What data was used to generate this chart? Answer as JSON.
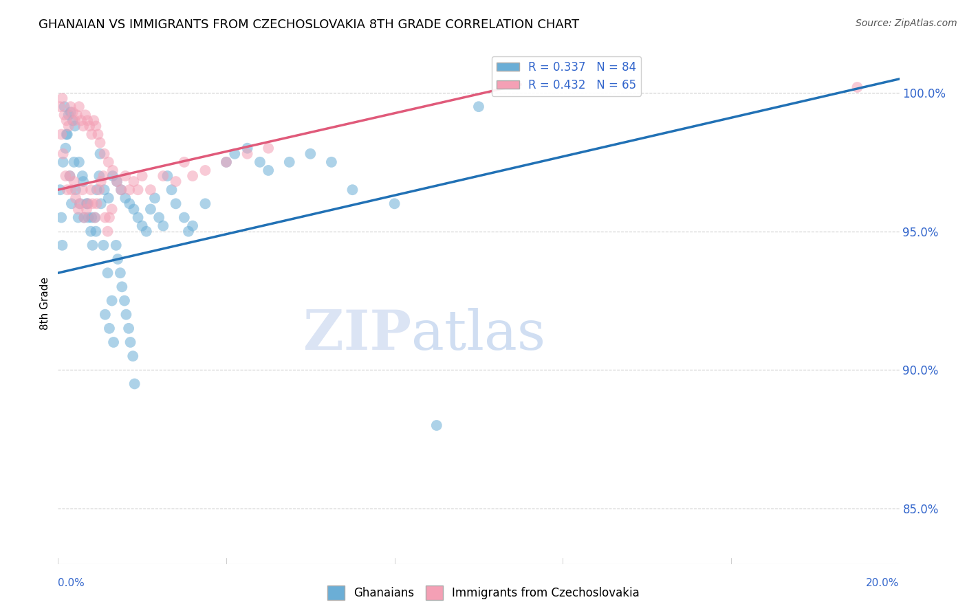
{
  "title": "GHANAIAN VS IMMIGRANTS FROM CZECHOSLOVAKIA 8TH GRADE CORRELATION CHART",
  "source": "Source: ZipAtlas.com",
  "ylabel": "8th Grade",
  "y_ticks": [
    85.0,
    90.0,
    95.0,
    100.0
  ],
  "y_tick_labels": [
    "85.0%",
    "90.0%",
    "95.0%",
    "100.0%"
  ],
  "xmin": 0.0,
  "xmax": 20.0,
  "ymin": 83.0,
  "ymax": 101.8,
  "legend_blue_label": "R = 0.337   N = 84",
  "legend_pink_label": "R = 0.432   N = 65",
  "blue_color": "#6baed6",
  "pink_color": "#f4a0b5",
  "blue_line_color": "#2171b5",
  "pink_line_color": "#e05a7a",
  "watermark_zip": "ZIP",
  "watermark_atlas": "atlas",
  "ghanaian_x": [
    0.1,
    0.15,
    0.2,
    0.25,
    0.3,
    0.35,
    0.4,
    0.5,
    0.6,
    0.7,
    0.8,
    0.9,
    1.0,
    1.1,
    1.2,
    1.3,
    1.4,
    1.5,
    1.6,
    1.7,
    1.8,
    1.9,
    2.0,
    2.1,
    2.2,
    2.4,
    2.5,
    2.6,
    2.7,
    2.8,
    3.0,
    3.1,
    3.2,
    3.5,
    4.0,
    4.2,
    4.5,
    4.8,
    5.0,
    5.5,
    6.0,
    6.5,
    7.0,
    8.0,
    9.0,
    10.0,
    0.05,
    0.08,
    0.12,
    0.18,
    0.22,
    0.28,
    0.32,
    0.38,
    0.42,
    0.48,
    0.52,
    0.58,
    0.62,
    0.68,
    0.72,
    0.78,
    0.82,
    0.88,
    0.92,
    0.98,
    1.02,
    1.08,
    1.12,
    1.18,
    1.22,
    1.28,
    1.32,
    1.38,
    1.42,
    1.48,
    1.52,
    1.58,
    1.62,
    1.68,
    1.72,
    1.78,
    1.82,
    2.3
  ],
  "ghanaian_y": [
    94.5,
    99.5,
    98.5,
    99.2,
    99.3,
    99.0,
    98.8,
    97.5,
    96.8,
    96.0,
    95.5,
    95.0,
    97.8,
    96.5,
    96.2,
    97.0,
    96.8,
    96.5,
    96.2,
    96.0,
    95.8,
    95.5,
    95.2,
    95.0,
    95.8,
    95.5,
    95.2,
    97.0,
    96.5,
    96.0,
    95.5,
    95.0,
    95.2,
    96.0,
    97.5,
    97.8,
    98.0,
    97.5,
    97.2,
    97.5,
    97.8,
    97.5,
    96.5,
    96.0,
    88.0,
    99.5,
    96.5,
    95.5,
    97.5,
    98.0,
    98.5,
    97.0,
    96.0,
    97.5,
    96.5,
    95.5,
    96.0,
    97.0,
    95.5,
    96.0,
    95.5,
    95.0,
    94.5,
    95.5,
    96.5,
    97.0,
    96.0,
    94.5,
    92.0,
    93.5,
    91.5,
    92.5,
    91.0,
    94.5,
    94.0,
    93.5,
    93.0,
    92.5,
    92.0,
    91.5,
    91.0,
    90.5,
    89.5,
    96.2
  ],
  "czech_x": [
    0.05,
    0.1,
    0.15,
    0.2,
    0.25,
    0.3,
    0.35,
    0.4,
    0.45,
    0.5,
    0.55,
    0.6,
    0.65,
    0.7,
    0.75,
    0.8,
    0.85,
    0.9,
    0.95,
    1.0,
    1.1,
    1.2,
    1.3,
    1.4,
    1.5,
    1.6,
    1.7,
    1.8,
    1.9,
    2.0,
    2.2,
    2.5,
    2.8,
    3.0,
    3.2,
    3.5,
    4.0,
    4.5,
    5.0,
    0.08,
    0.12,
    0.18,
    0.22,
    0.28,
    0.32,
    0.38,
    0.42,
    0.48,
    0.52,
    0.58,
    0.62,
    0.68,
    0.72,
    0.78,
    0.82,
    0.88,
    0.92,
    0.98,
    1.02,
    1.08,
    1.12,
    1.18,
    1.22,
    1.28,
    19.0
  ],
  "czech_y": [
    99.5,
    99.8,
    99.2,
    99.0,
    98.8,
    99.5,
    99.3,
    99.0,
    99.2,
    99.5,
    99.0,
    98.8,
    99.2,
    99.0,
    98.8,
    98.5,
    99.0,
    98.8,
    98.5,
    98.2,
    97.8,
    97.5,
    97.2,
    96.8,
    96.5,
    97.0,
    96.5,
    96.8,
    96.5,
    97.0,
    96.5,
    97.0,
    96.8,
    97.5,
    97.0,
    97.2,
    97.5,
    97.8,
    98.0,
    98.5,
    97.8,
    97.0,
    96.5,
    97.0,
    96.5,
    96.8,
    96.2,
    95.8,
    96.0,
    96.5,
    95.5,
    95.8,
    96.0,
    96.5,
    96.0,
    95.5,
    96.0,
    96.5,
    96.8,
    97.0,
    95.5,
    95.0,
    95.5,
    95.8,
    100.2
  ],
  "blue_trendline_x": [
    0.0,
    20.0
  ],
  "blue_trendline_y": [
    93.5,
    100.5
  ],
  "pink_trendline_x": [
    0.0,
    11.0
  ],
  "pink_trendline_y": [
    96.5,
    100.3
  ]
}
